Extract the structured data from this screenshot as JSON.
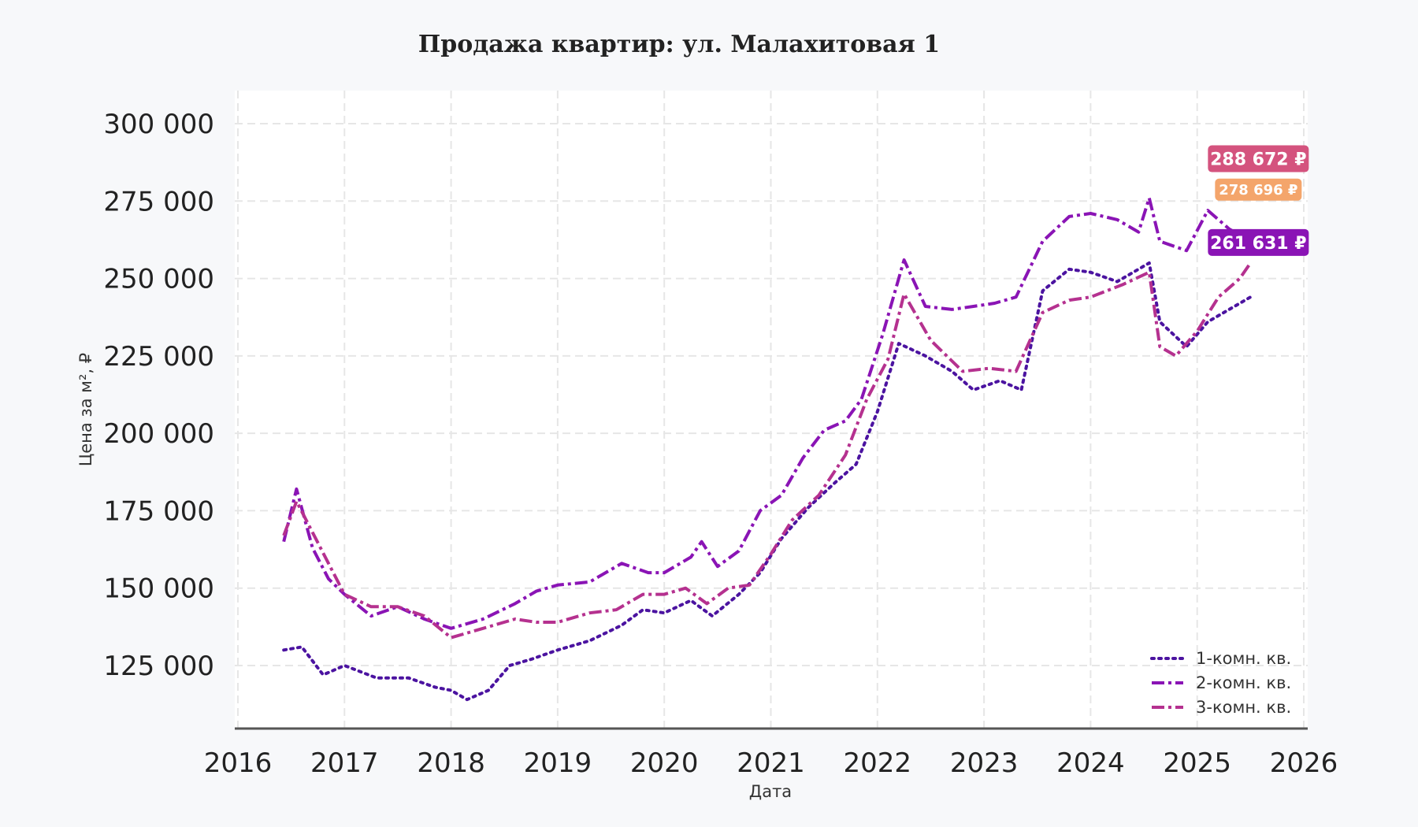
{
  "chart_data": {
    "type": "line",
    "title": "Продажа квартир: ул. Малахитовая 1",
    "xlabel": "Дата",
    "ylabel": "Цена за м², ₽",
    "xlim": [
      2016,
      2026
    ],
    "ylim": [
      110000,
      310000
    ],
    "x_ticks": [
      "2016",
      "2017",
      "2018",
      "2019",
      "2020",
      "2021",
      "2022",
      "2023",
      "2024",
      "2025",
      "2026"
    ],
    "y_ticks": [
      "125 000",
      "150 000",
      "175 000",
      "200 000",
      "225 000",
      "250 000",
      "275 000",
      "300 000"
    ],
    "grid": true,
    "legend_position": "bottom-right",
    "series": [
      {
        "name": "1-комн. кв.",
        "color": "#4b13a0",
        "dash": "dotted",
        "x": [
          2016.43,
          2016.6,
          2016.8,
          2017.0,
          2017.3,
          2017.6,
          2017.85,
          2018.0,
          2018.15,
          2018.35,
          2018.55,
          2018.75,
          2019.0,
          2019.3,
          2019.6,
          2019.8,
          2020.0,
          2020.25,
          2020.45,
          2020.7,
          2020.9,
          2021.1,
          2021.35,
          2021.6,
          2021.8,
          2022.0,
          2022.2,
          2022.45,
          2022.7,
          2022.9,
          2023.15,
          2023.35,
          2023.55,
          2023.8,
          2024.0,
          2024.25,
          2024.55,
          2024.65,
          2024.9,
          2025.1,
          2025.3,
          2025.5
        ],
        "values": [
          130000,
          131000,
          122000,
          125000,
          121000,
          121000,
          118000,
          117000,
          114000,
          117000,
          125000,
          127000,
          130000,
          133000,
          138000,
          143000,
          142000,
          146000,
          141000,
          148000,
          155000,
          166000,
          176000,
          184000,
          190000,
          207000,
          229000,
          225000,
          220000,
          214000,
          217000,
          214000,
          246000,
          253000,
          252000,
          249000,
          255000,
          236000,
          228000,
          236000,
          240000,
          244000
        ]
      },
      {
        "name": "2-комн. кв.",
        "color": "#8a14b5",
        "dash": "dashdot",
        "x": [
          2016.43,
          2016.55,
          2016.7,
          2016.85,
          2017.0,
          2017.25,
          2017.5,
          2017.75,
          2018.0,
          2018.3,
          2018.6,
          2018.8,
          2019.0,
          2019.3,
          2019.6,
          2019.85,
          2020.0,
          2020.25,
          2020.35,
          2020.5,
          2020.7,
          2020.9,
          2021.1,
          2021.3,
          2021.5,
          2021.7,
          2021.85,
          2022.05,
          2022.25,
          2022.45,
          2022.7,
          2022.9,
          2023.1,
          2023.3,
          2023.55,
          2023.8,
          2024.0,
          2024.25,
          2024.45,
          2024.55,
          2024.65,
          2024.9,
          2025.1,
          2025.3,
          2025.5
        ],
        "values": [
          165000,
          182000,
          163000,
          153000,
          148000,
          141000,
          144000,
          140000,
          137000,
          140000,
          145000,
          149000,
          151000,
          152000,
          158000,
          155000,
          155000,
          160000,
          165000,
          157000,
          162000,
          175000,
          180000,
          192000,
          201000,
          204000,
          211000,
          232000,
          256000,
          241000,
          240000,
          241000,
          242000,
          244000,
          262000,
          270000,
          271000,
          269000,
          265000,
          276000,
          262000,
          259000,
          272000,
          266000,
          262000
        ]
      },
      {
        "name": "3-комн. кв.",
        "color": "#b5318f",
        "dash": "dashdot",
        "x": [
          2016.43,
          2016.55,
          2016.7,
          2016.85,
          2017.0,
          2017.25,
          2017.5,
          2017.75,
          2018.0,
          2018.3,
          2018.6,
          2018.8,
          2019.0,
          2019.3,
          2019.55,
          2019.8,
          2020.0,
          2020.2,
          2020.4,
          2020.6,
          2020.8,
          2021.0,
          2021.2,
          2021.45,
          2021.7,
          2021.9,
          2022.1,
          2022.25,
          2022.5,
          2022.8,
          2023.05,
          2023.3,
          2023.55,
          2023.8,
          2024.0,
          2024.3,
          2024.55,
          2024.65,
          2024.8,
          2025.0,
          2025.2,
          2025.4,
          2025.5
        ],
        "values": [
          167000,
          178000,
          168000,
          158000,
          148000,
          144000,
          144000,
          141000,
          134000,
          137000,
          140000,
          139000,
          139000,
          142000,
          143000,
          148000,
          148000,
          150000,
          145000,
          150000,
          151000,
          161000,
          172000,
          180000,
          193000,
          211000,
          224000,
          245000,
          230000,
          220000,
          221000,
          220000,
          239000,
          243000,
          244000,
          248000,
          252000,
          228000,
          225000,
          233000,
          244000,
          250000,
          255000
        ]
      }
    ],
    "annotations": [
      {
        "text": "288 672 ₽",
        "y": 288672,
        "color": "#d4537e"
      },
      {
        "text": "278 696 ₽",
        "y": 278696,
        "color": "#f4a56b"
      },
      {
        "text": "261 631 ₽",
        "y": 261631,
        "color": "#8a14b5"
      }
    ]
  }
}
